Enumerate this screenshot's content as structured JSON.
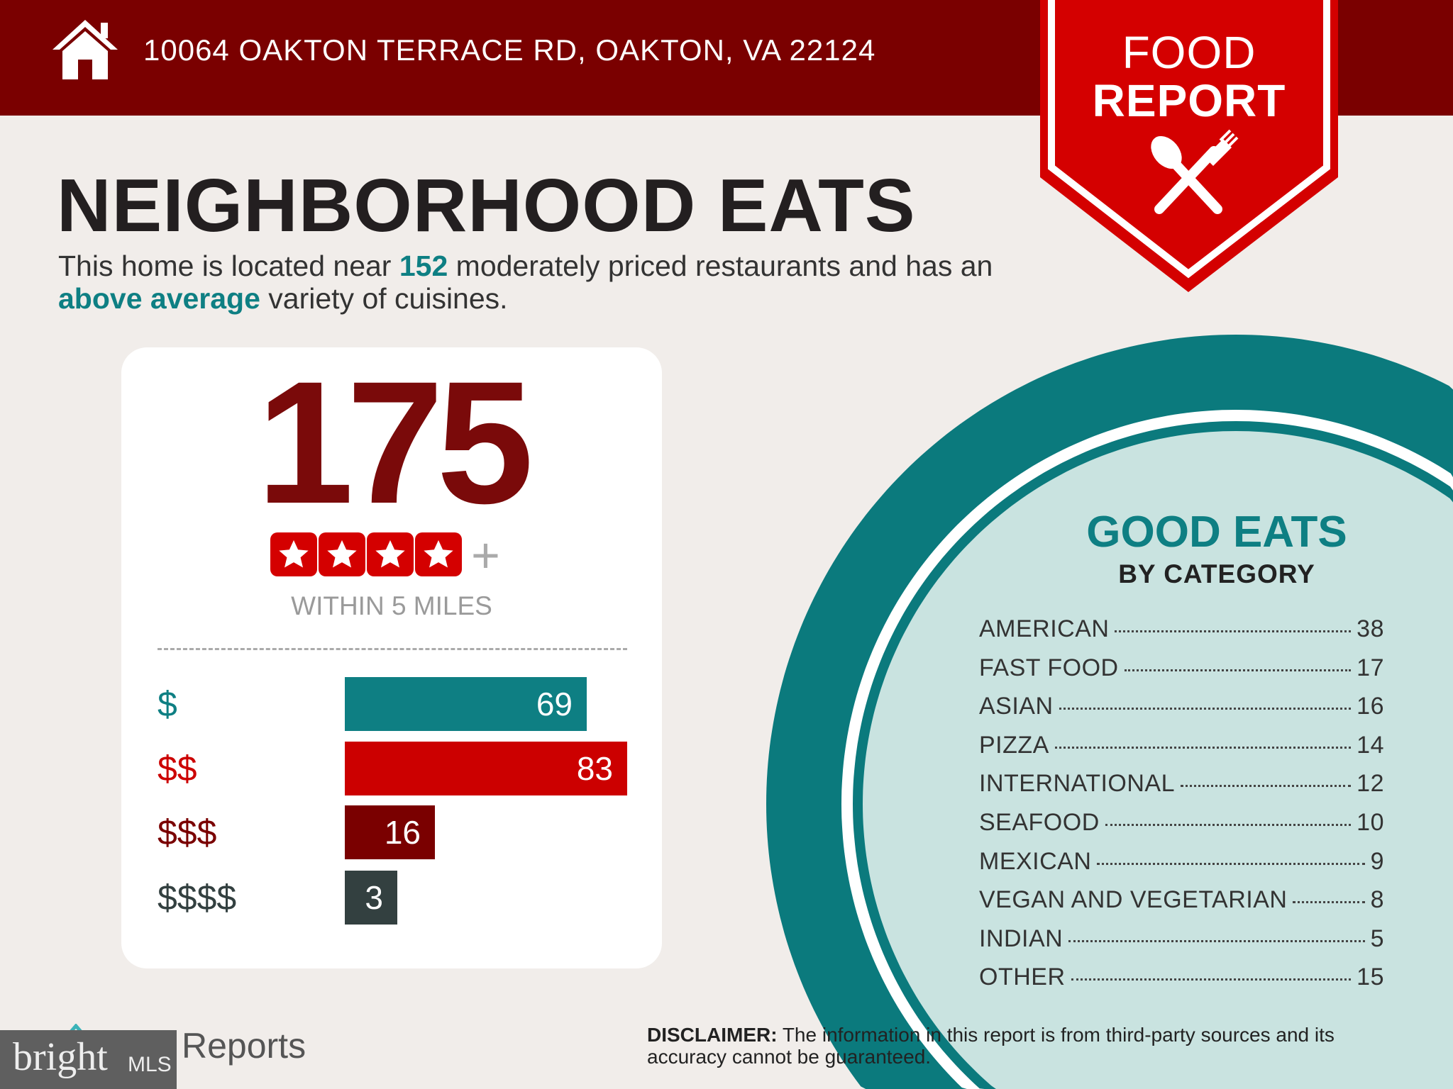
{
  "header": {
    "address": "10064 OAKTON TERRACE RD, OAKTON, VA 22124",
    "icon": "home-icon"
  },
  "banner": {
    "line1": "FOOD",
    "line2": "REPORT",
    "icon": "spoon-fork-icon"
  },
  "title": "NEIGHBORHOOD EATS",
  "intro": {
    "p1": "This home is located near ",
    "count": "152",
    "p2": " moderately priced restaurants and has an ",
    "variety": "above average",
    "p3": " variety of cuisines."
  },
  "summary": {
    "total": "175",
    "stars": 4,
    "plus": "+",
    "within": "WITHIN 5 MILES"
  },
  "price_tiers": [
    {
      "label": "$",
      "value": 69,
      "color": "#0e7f83"
    },
    {
      "label": "$$",
      "value": 83,
      "color": "#cc0000"
    },
    {
      "label": "$$$",
      "value": 16,
      "color": "#7a0000"
    },
    {
      "label": "$$$$",
      "value": 3,
      "color": "#334040"
    }
  ],
  "good_eats": {
    "title": "GOOD EATS",
    "subtitle": "BY CATEGORY",
    "categories": [
      {
        "name": "AMERICAN",
        "count": "38"
      },
      {
        "name": "FAST FOOD",
        "count": "17"
      },
      {
        "name": "ASIAN",
        "count": "16"
      },
      {
        "name": "PIZZA",
        "count": "14"
      },
      {
        "name": "INTERNATIONAL",
        "count": "12"
      },
      {
        "name": "SEAFOOD",
        "count": "10"
      },
      {
        "name": "MEXICAN",
        "count": "9"
      },
      {
        "name": "VEGAN AND VEGETARIAN",
        "count": "8"
      },
      {
        "name": "INDIAN",
        "count": "5"
      },
      {
        "name": "OTHER",
        "count": "15"
      }
    ]
  },
  "disclaimer": {
    "label": "DISCLAIMER:",
    "text": " The information in this report is from third-party sources and its accuracy cannot be guaranteed."
  },
  "footer": {
    "reports": "Reports",
    "mls_logo": "bright",
    "mls_suffix": "MLS"
  },
  "colors": {
    "header": "#7a0000",
    "banner": "#d40000",
    "teal": "#0e7f83",
    "plate": "#c9e3e0"
  }
}
